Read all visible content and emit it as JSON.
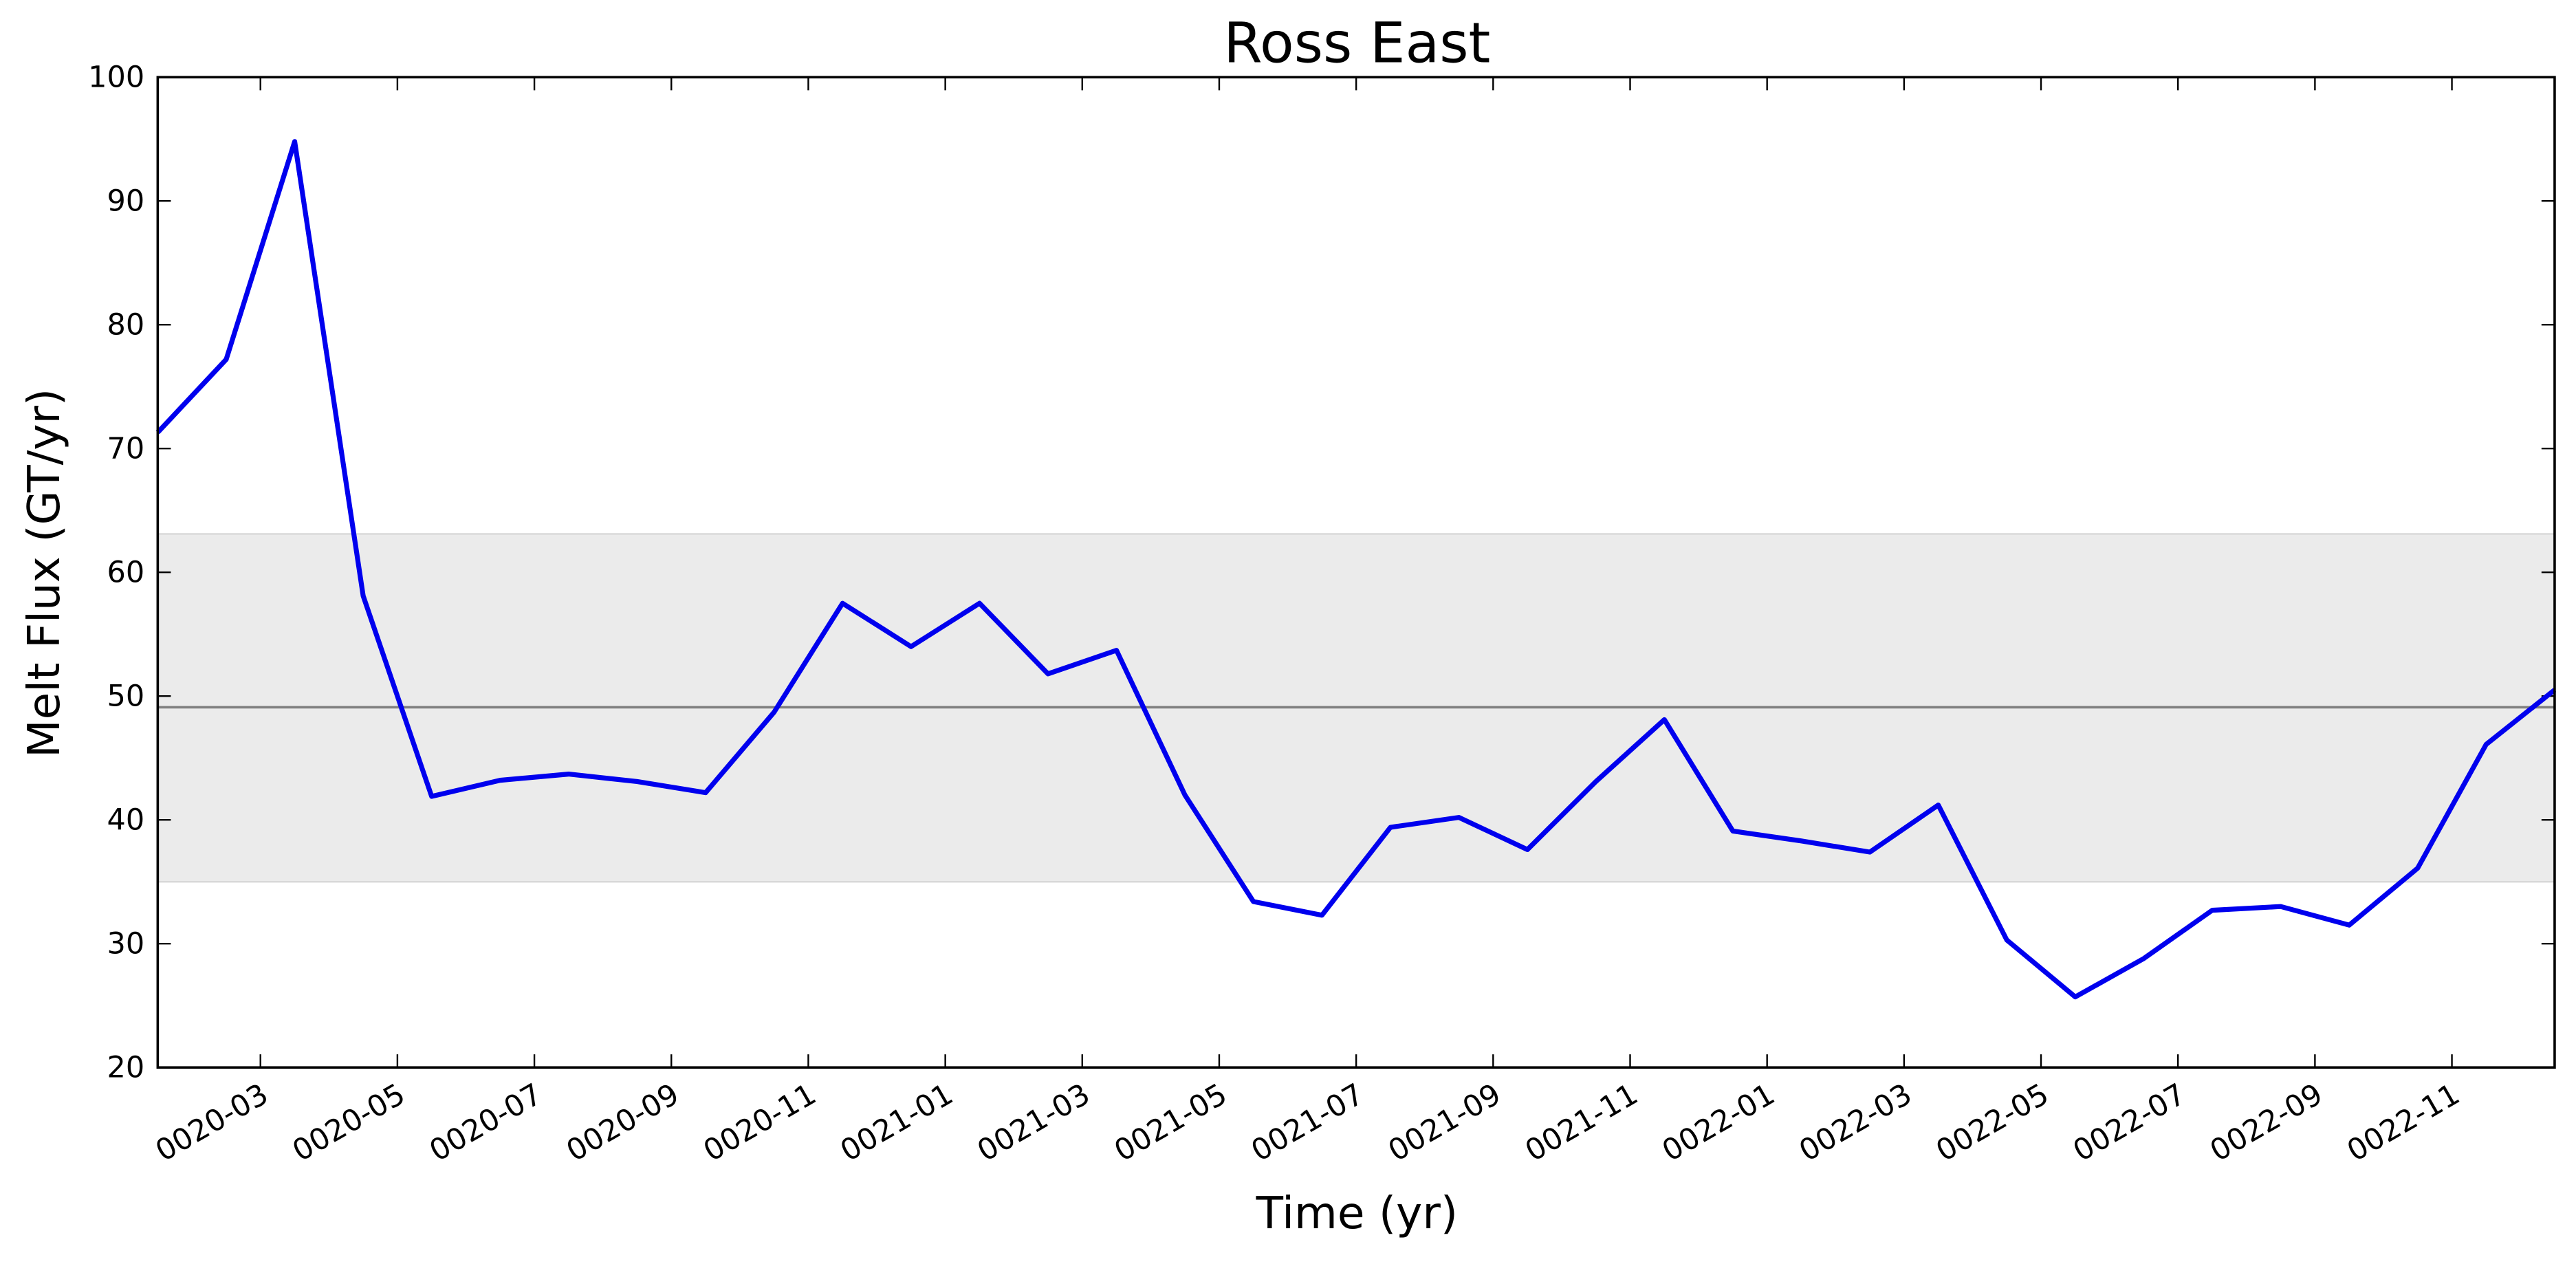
{
  "chart_data": {
    "type": "line",
    "title": "Ross East",
    "x_label": "Time (yr)",
    "y_label": "Melt Flux (GT/yr)",
    "x": [
      "0020-01",
      "0020-02",
      "0020-03",
      "0020-04",
      "0020-05",
      "0020-06",
      "0020-07",
      "0020-08",
      "0020-09",
      "0020-10",
      "0020-11",
      "0020-12",
      "0021-01",
      "0021-02",
      "0021-03",
      "0021-04",
      "0021-05",
      "0021-06",
      "0021-07",
      "0021-08",
      "0021-09",
      "0021-10",
      "0021-11",
      "0021-12",
      "0022-01",
      "0022-02",
      "0022-03",
      "0022-04",
      "0022-05",
      "0022-06",
      "0022-07",
      "0022-08",
      "0022-09",
      "0022-10",
      "0022-11",
      "0022-12"
    ],
    "series": [
      {
        "color": "#0000ee",
        "values": [
          71.3,
          77.2,
          94.8,
          58.1,
          41.9,
          43.2,
          43.7,
          43.1,
          42.2,
          48.7,
          57.5,
          54.0,
          57.5,
          51.8,
          53.7,
          42.0,
          33.4,
          32.3,
          39.4,
          40.2,
          37.6,
          43.1,
          48.1,
          39.1,
          38.3,
          37.4,
          41.2,
          30.3,
          25.7,
          28.8,
          32.7,
          33.0,
          31.5,
          36.1,
          46.1,
          50.5
        ]
      }
    ],
    "band": [
      35,
      63.1
    ],
    "band_color": "#ebebeb",
    "mean_line": 49.1,
    "mean_color": "#808080",
    "xlim": [
      "0020-01",
      "0022-12"
    ],
    "xticks": [
      "0020-03",
      "0020-05",
      "0020-07",
      "0020-09",
      "0020-11",
      "0021-01",
      "0021-03",
      "0021-05",
      "0021-07",
      "0021-09",
      "0021-11",
      "0022-01",
      "0022-03",
      "0022-05",
      "0022-07",
      "0022-09",
      "0022-11"
    ],
    "ylim": [
      20,
      100
    ],
    "yticks": [
      20,
      30,
      40,
      50,
      60,
      70,
      80,
      90,
      100
    ],
    "grid": false
  }
}
